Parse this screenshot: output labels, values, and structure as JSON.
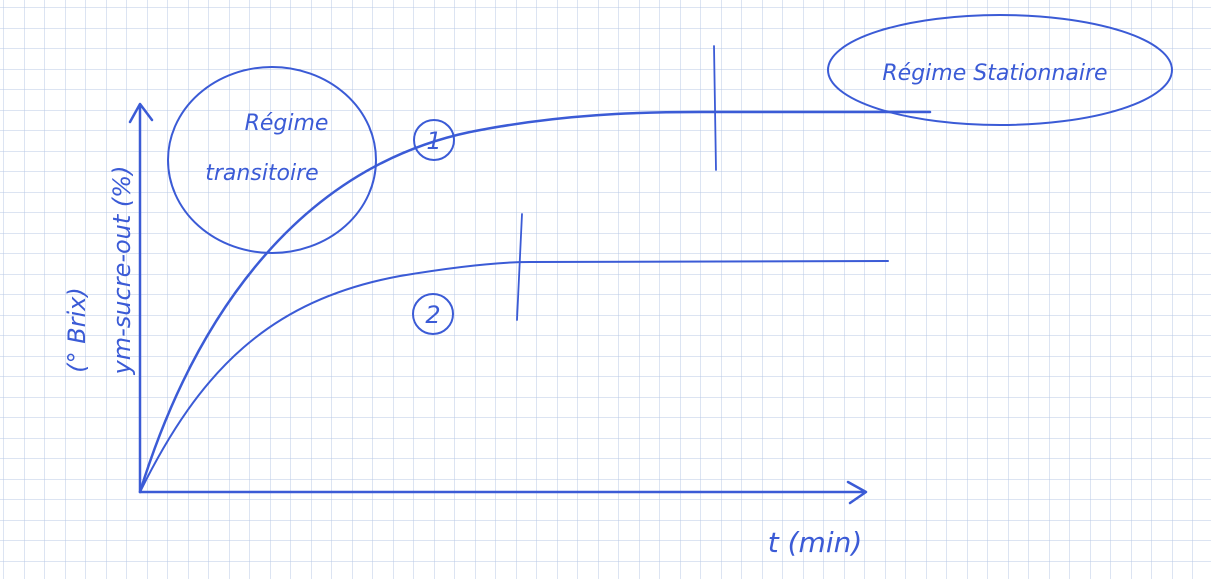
{
  "diagram": {
    "y_axis_label": {
      "line1": "(° Brix)",
      "line2": "ym-sucre-out (%)"
    },
    "x_axis_label": "t (min)",
    "curves": [
      {
        "label": "1"
      },
      {
        "label": "2"
      }
    ],
    "zones": {
      "transient": "Régime transitoire",
      "steady": "Régime Stationnaire"
    }
  }
}
